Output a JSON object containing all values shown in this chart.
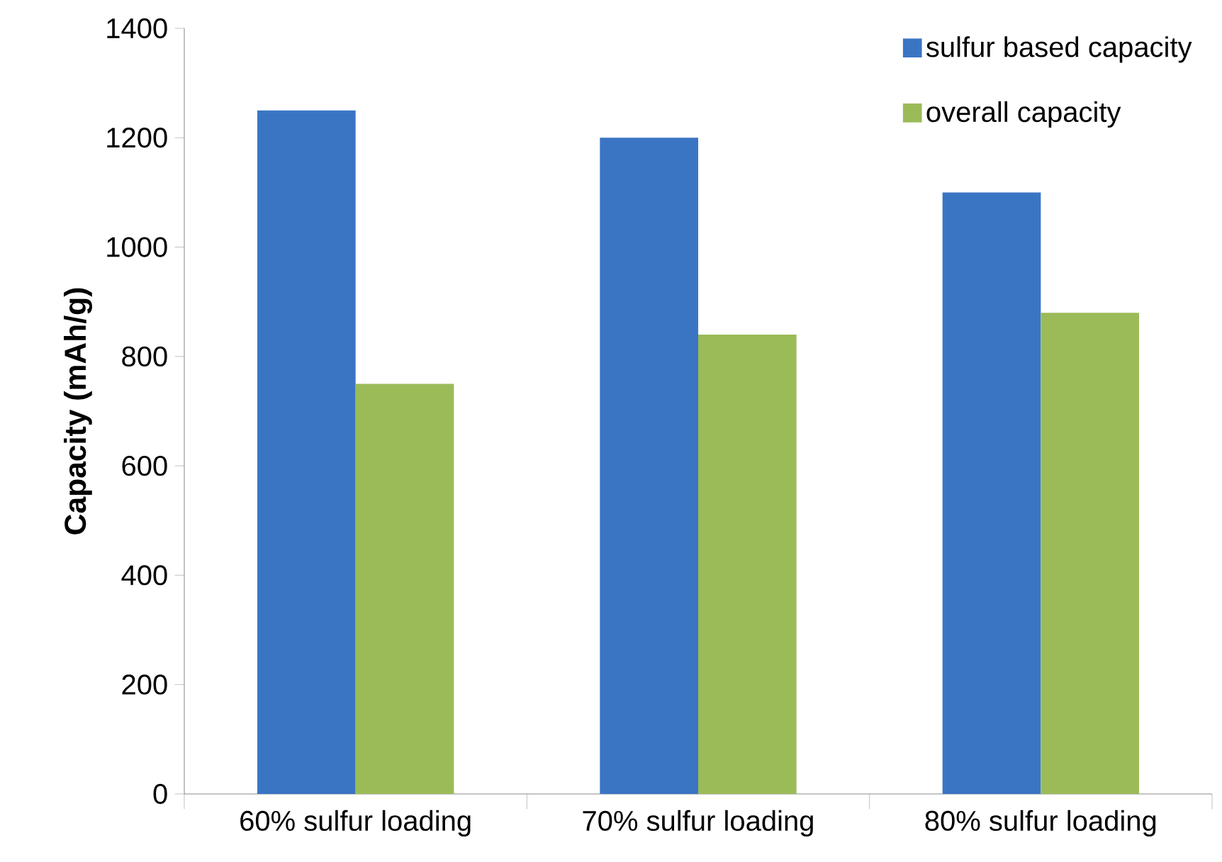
{
  "chart_data": {
    "type": "bar",
    "ylabel": "Capacity (mAh/g)",
    "categories": [
      "60% sulfur loading",
      "70% sulfur loading",
      "80% sulfur loading"
    ],
    "series": [
      {
        "name": "sulfur based capacity",
        "color": "#3a75c4",
        "values": [
          1250,
          1200,
          1100
        ]
      },
      {
        "name": "overall capacity",
        "color": "#9bbb59",
        "values": [
          750,
          840,
          880
        ]
      }
    ],
    "ylim": [
      0,
      1400
    ],
    "yticks": [
      0,
      200,
      400,
      600,
      800,
      1000,
      1200,
      1400
    ],
    "legend": "top right"
  }
}
